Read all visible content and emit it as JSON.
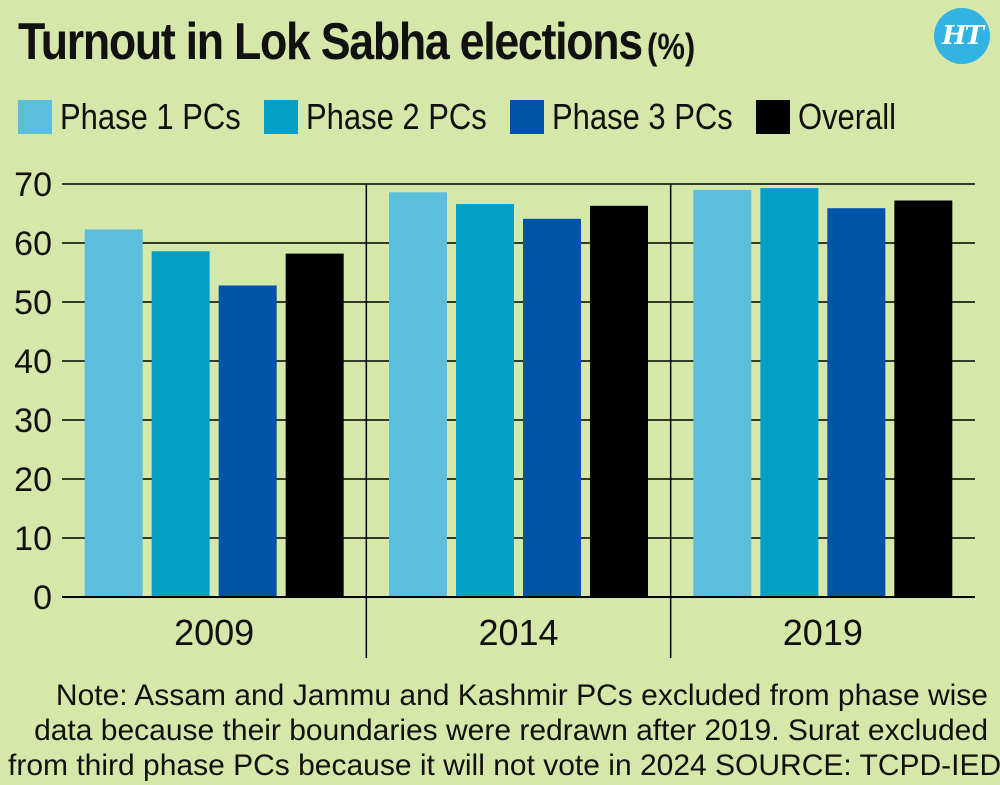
{
  "title": "Turnout in Lok Sabha elections",
  "title_unit": "(%)",
  "logo_text": "HT",
  "legend": [
    {
      "label": "Phase 1 PCs",
      "color": "#5bbfdc"
    },
    {
      "label": "Phase 2 PCs",
      "color": "#039fc4"
    },
    {
      "label": "Phase 3 PCs",
      "color": "#0053a8"
    },
    {
      "label": "Overall",
      "color": "#000000"
    }
  ],
  "note_lines": [
    "Note: Assam and Jammu and Kashmir PCs excluded from phase wise",
    "data because their boundaries were redrawn after 2019. Surat excluded",
    "from third phase PCs because it will not vote in 2024  SOURCE: TCPD-IED"
  ],
  "chart_data": {
    "type": "bar",
    "title": "Turnout in Lok Sabha elections (%)",
    "categories": [
      "2009",
      "2014",
      "2019"
    ],
    "series": [
      {
        "name": "Phase 1 PCs",
        "color": "#5bbfdc",
        "values": [
          62.3,
          68.6,
          69.0
        ]
      },
      {
        "name": "Phase 2 PCs",
        "color": "#039fc4",
        "values": [
          58.6,
          66.6,
          69.3
        ]
      },
      {
        "name": "Phase 3 PCs",
        "color": "#0053a8",
        "values": [
          52.8,
          64.1,
          65.9
        ]
      },
      {
        "name": "Overall",
        "color": "#000000",
        "values": [
          58.2,
          66.3,
          67.2
        ]
      }
    ],
    "ylim": [
      0,
      70
    ],
    "yticks": [
      0,
      10,
      20,
      30,
      40,
      50,
      60,
      70
    ],
    "grid": true,
    "legend_position": "top"
  }
}
